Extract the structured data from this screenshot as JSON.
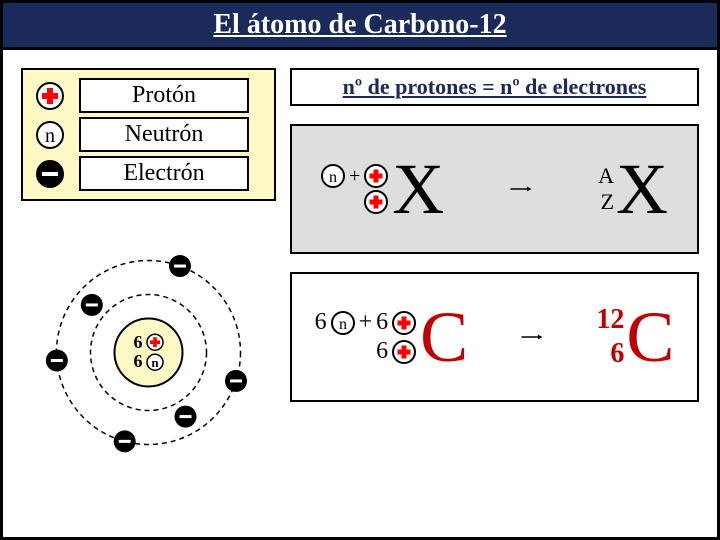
{
  "title": "El átomo de Carbono-12",
  "colors": {
    "title_bg": "#1a2a5a",
    "title_text": "#ffffff",
    "legend_bg": "#fdf8c4",
    "formula_bg": "#dedede",
    "proton_fill": "#ff0000",
    "neutron_fill": "#ffffff",
    "electron_fill": "#000000",
    "accent_red": "#c00000",
    "rule_text": "#1a2a5a"
  },
  "legend": {
    "proton": "Protón",
    "neutron": "Neutrón",
    "electron": "Electrón",
    "neutron_symbol": "n"
  },
  "atom": {
    "nucleus_protons": "6",
    "nucleus_neutrons": "6",
    "orbit_electron_count": 6,
    "orbit_radii": [
      58,
      92
    ],
    "electron_positions": [
      {
        "angle": -70,
        "r": 92
      },
      {
        "angle": -140,
        "r": 74
      },
      {
        "angle": 175,
        "r": 92
      },
      {
        "angle": 18,
        "r": 92
      },
      {
        "angle": 60,
        "r": 74
      },
      {
        "angle": 105,
        "r": 92
      }
    ]
  },
  "rule": "nº de protones = nº de electrones",
  "generic": {
    "n_symbol": "n",
    "plus_text": "+",
    "element": "X",
    "mass_label": "A",
    "atomic_label": "Z"
  },
  "carbon": {
    "neutron_count": "6",
    "proton_count": "6",
    "bottom_proton_count": "6",
    "element": "C",
    "mass_number": "12",
    "atomic_number": "6"
  }
}
